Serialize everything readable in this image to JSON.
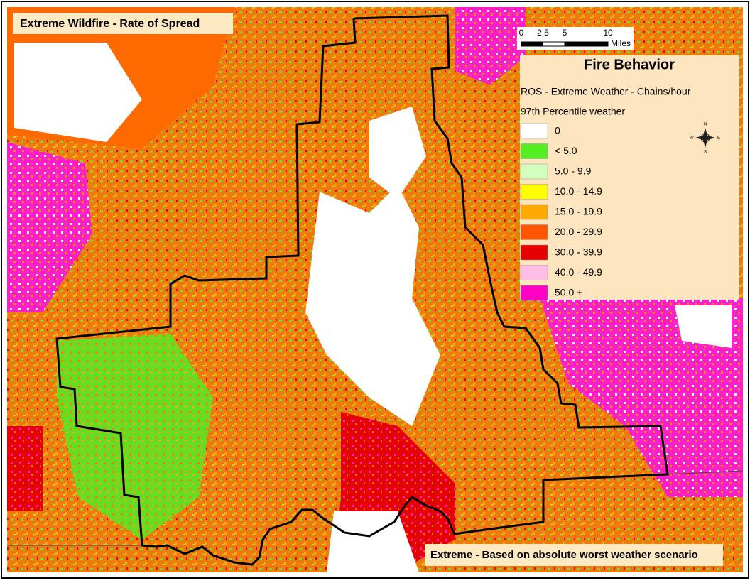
{
  "title": "Extreme Wildfire - Rate of Spread",
  "footer": "Extreme - Based on absolute worst weather scenario",
  "scale_bar": {
    "ticks": [
      0,
      2.5,
      5,
      10
    ],
    "unit": "Miles"
  },
  "compass": {
    "n": "N",
    "s": "S",
    "e": "E",
    "w": "W"
  },
  "legend": {
    "title": "Fire Behavior",
    "subtitle": "ROS - Extreme Weather - Chains/hour",
    "note": "97th Percentile weather",
    "items": [
      {
        "label": "0",
        "color": "#ffffff"
      },
      {
        "label": "< 5.0",
        "color": "#55ee22"
      },
      {
        "label": "5.0 - 9.9",
        "color": "#d3ffbe"
      },
      {
        "label": "10.0 - 14.9",
        "color": "#ffff00"
      },
      {
        "label": "15.0 - 19.9",
        "color": "#ffaa00"
      },
      {
        "label": "20.0 - 29.9",
        "color": "#ff5500"
      },
      {
        "label": "30.0 - 39.9",
        "color": "#e60000"
      },
      {
        "label": "40.0 - 49.9",
        "color": "#ffbee8"
      },
      {
        "label": "50.0 +",
        "color": "#ff00c5"
      }
    ]
  }
}
